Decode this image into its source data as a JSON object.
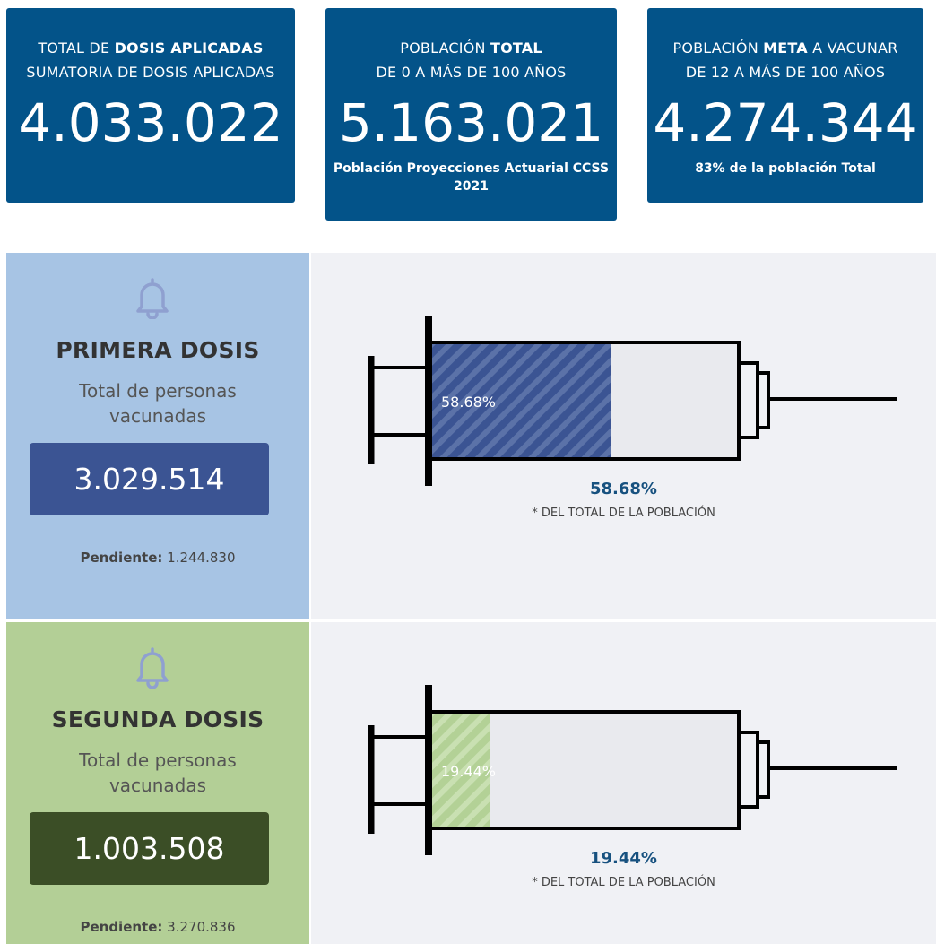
{
  "cards": [
    {
      "title1": [
        {
          "text": "TOTAL DE "
        },
        {
          "text": "DOSIS APLICADAS",
          "bold": true
        }
      ],
      "title2": "SUMATORIA DE DOSIS APLICADAS",
      "value": "4.033.022"
    },
    {
      "title1": [
        {
          "text": "POBLACIÓN "
        },
        {
          "text": "TOTAL",
          "bold": true
        }
      ],
      "title2": "DE 0 A MÁS DE 100 AÑOS",
      "value": "5.163.021",
      "note": "Población Proyecciones Actuarial CCSS 2021"
    },
    {
      "title1": [
        {
          "text": "POBLACIÓN "
        },
        {
          "text": "META",
          "bold": true
        },
        {
          "text": " A VACUNAR"
        }
      ],
      "title2": "DE 12 A MÁS DE 100 AÑOS",
      "value": "4.274.344",
      "note": "83% de la población Total"
    }
  ],
  "doses": [
    {
      "title": "PRIMERA DOSIS",
      "subtitle": "Total de personas vacunadas",
      "value": "3.029.514",
      "pending_label": "Pendiente:",
      "pending": "1.244.830",
      "percent": 58.68,
      "percent_label": "58.68%",
      "percent_note": "* DEL TOTAL DE LA POBLACIÓN"
    },
    {
      "title": "SEGUNDA DOSIS",
      "subtitle": "Total de personas vacunadas",
      "value": "1.003.508",
      "pending_label": "Pendiente:",
      "pending": "3.270.836",
      "percent": 19.44,
      "percent_label": "19.44%",
      "percent_note": "* DEL TOTAL DE LA POBLACIÓN"
    }
  ]
}
